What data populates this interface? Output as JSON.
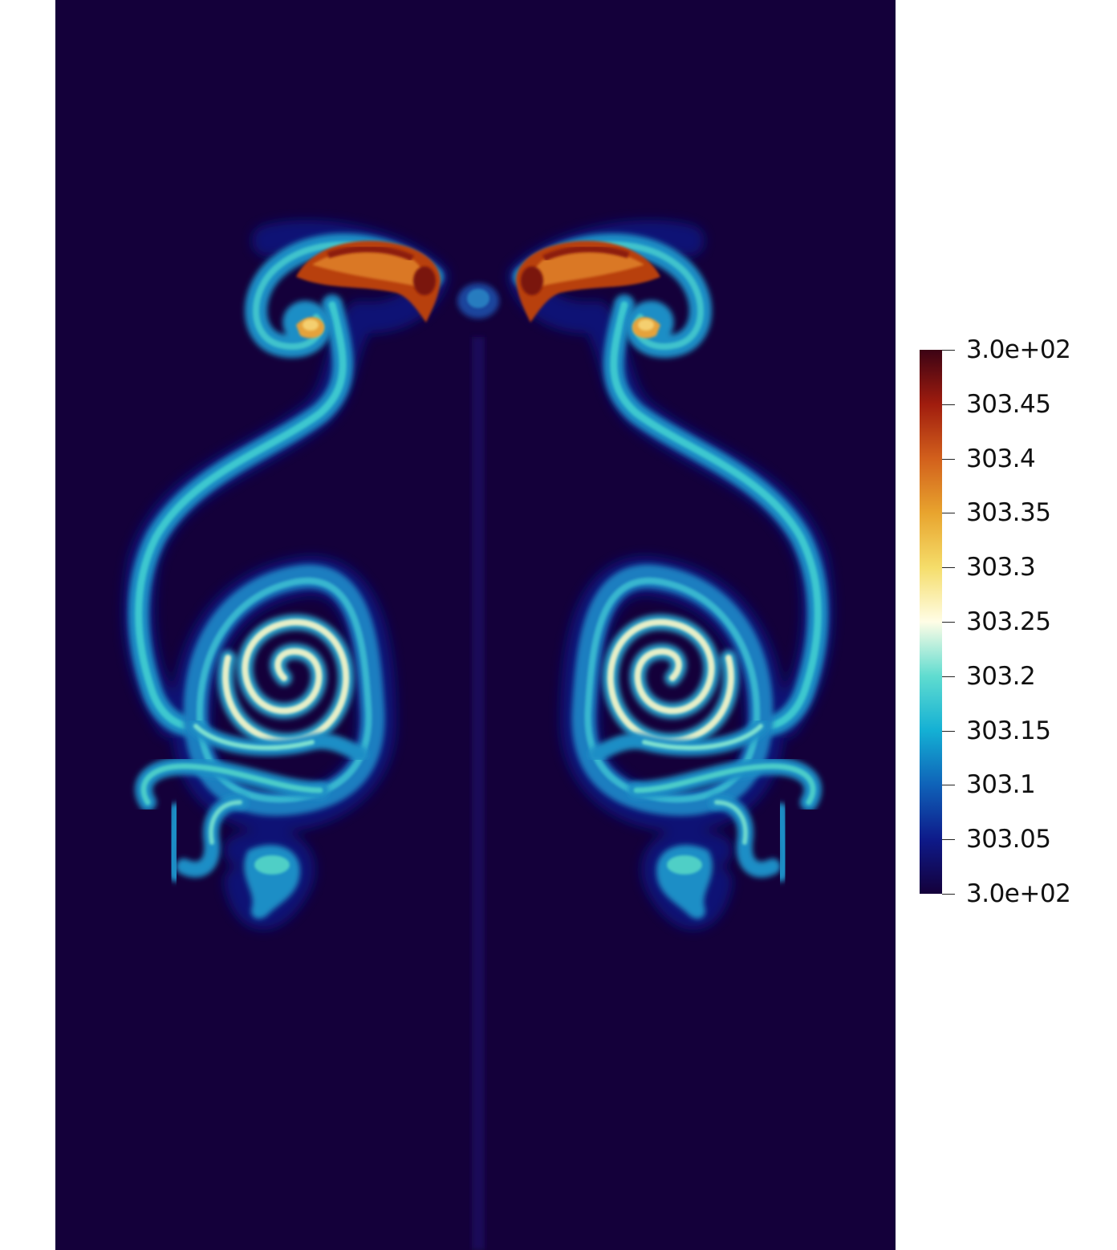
{
  "chart_data": {
    "type": "heatmap",
    "field_description": "",
    "colormap": "turbo-like",
    "colorbar": {
      "range": [
        303.0,
        303.5
      ],
      "tick_labels": [
        "3.0e+02",
        "303.45",
        "303.4",
        "303.35",
        "303.3",
        "303.25",
        "303.2",
        "303.15",
        "303.1",
        "303.05",
        "3.0e+02"
      ],
      "tick_values": [
        303.5,
        303.45,
        303.4,
        303.35,
        303.3,
        303.25,
        303.2,
        303.15,
        303.1,
        303.05,
        303.0
      ],
      "stops": [
        {
          "value": 303.0,
          "color": "#14003a"
        },
        {
          "value": 303.05,
          "color": "#0e1a8a"
        },
        {
          "value": 303.1,
          "color": "#0f62b8"
        },
        {
          "value": 303.15,
          "color": "#14b0d4"
        },
        {
          "value": 303.2,
          "color": "#5fdcd0"
        },
        {
          "value": 303.25,
          "color": "#fffde6"
        },
        {
          "value": 303.3,
          "color": "#f5dd6a"
        },
        {
          "value": 303.35,
          "color": "#e8a42e"
        },
        {
          "value": 303.4,
          "color": "#d2601c"
        },
        {
          "value": 303.45,
          "color": "#a01c0e"
        },
        {
          "value": 303.5,
          "color": "#3c0314"
        }
      ],
      "placement": "right"
    },
    "background_color": "#14003a"
  }
}
